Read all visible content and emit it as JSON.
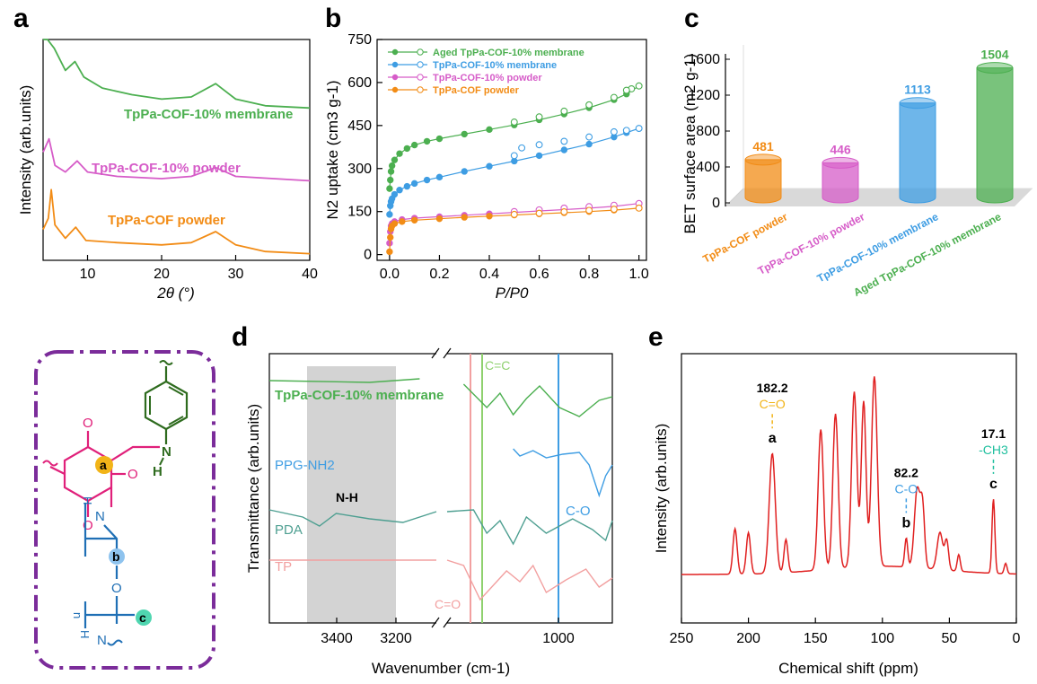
{
  "panels": {
    "a": "a",
    "b": "b",
    "c": "c",
    "d": "d",
    "e": "e"
  },
  "colors": {
    "green": "#4caf50",
    "pink": "#d65cc8",
    "orange": "#f28c16",
    "blue": "#3e9de3",
    "teal": "#4e9f91",
    "salmon": "#f2a0a0",
    "red": "#e02020",
    "yellow": "#f2b418",
    "magenta": "#e0207a",
    "darkgreen": "#2e6b1e",
    "structblue": "#1f6fb5",
    "purple": "#7b2c9a",
    "gray_band": "#d3d3d3"
  },
  "chart_data": [
    {
      "panel": "a",
      "type": "line",
      "title": "",
      "xlabel": "2θ (°)",
      "ylabel": "Intensity (arb.units)",
      "xlim": [
        4,
        40
      ],
      "xticks": [
        "10",
        "20",
        "30",
        "40"
      ],
      "series": [
        {
          "name": "TpPa-COF-10% membrane",
          "color": "#4caf50",
          "offset": 0.66,
          "points": [
            [
              4,
              1.0
            ],
            [
              4.6,
              0.5
            ],
            [
              5.5,
              0.3
            ],
            [
              7,
              0.2
            ],
            [
              8.3,
              0.24
            ],
            [
              9.5,
              0.17
            ],
            [
              12,
              0.12
            ],
            [
              16,
              0.09
            ],
            [
              20,
              0.07
            ],
            [
              24,
              0.08
            ],
            [
              27.3,
              0.14
            ],
            [
              30,
              0.07
            ],
            [
              34,
              0.04
            ],
            [
              40,
              0.03
            ]
          ]
        },
        {
          "name": "TpPa-COF-10% powder",
          "color": "#d65cc8",
          "offset": 0.35,
          "points": [
            [
              4,
              0.14
            ],
            [
              4.8,
              0.2
            ],
            [
              5.6,
              0.08
            ],
            [
              7,
              0.05
            ],
            [
              8.6,
              0.1
            ],
            [
              10,
              0.05
            ],
            [
              14,
              0.03
            ],
            [
              20,
              0.02
            ],
            [
              24,
              0.03
            ],
            [
              27.3,
              0.07
            ],
            [
              30,
              0.03
            ],
            [
              40,
              0.01
            ]
          ]
        },
        {
          "name": "TpPa-COF powder",
          "color": "#f28c16",
          "offset": 0.02,
          "points": [
            [
              4,
              0.12
            ],
            [
              4.7,
              0.17
            ],
            [
              5.1,
              0.3
            ],
            [
              5.6,
              0.14
            ],
            [
              7,
              0.08
            ],
            [
              8.4,
              0.13
            ],
            [
              9.8,
              0.07
            ],
            [
              14,
              0.06
            ],
            [
              20,
              0.05
            ],
            [
              24,
              0.06
            ],
            [
              27.3,
              0.11
            ],
            [
              30,
              0.05
            ],
            [
              34,
              0.02
            ],
            [
              40,
              0.01
            ]
          ]
        }
      ]
    },
    {
      "panel": "b",
      "type": "scatter",
      "title": "",
      "xlabel": "P/P0",
      "ylabel": "N2 uptake (cm3 g-1)",
      "xlim": [
        -0.05,
        1.03
      ],
      "ylim": [
        -20,
        750
      ],
      "xticks": [
        "0.0",
        "0.2",
        "0.4",
        "0.6",
        "0.8",
        "1.0"
      ],
      "yticks": [
        "0",
        "150",
        "300",
        "450",
        "600",
        "750"
      ],
      "series": [
        {
          "name": "Aged TpPa-COF-10% membrane",
          "color": "#4caf50",
          "adsorption": [
            [
              0.0,
              230
            ],
            [
              0.003,
              260
            ],
            [
              0.006,
              290
            ],
            [
              0.01,
              310
            ],
            [
              0.02,
              330
            ],
            [
              0.04,
              352
            ],
            [
              0.07,
              370
            ],
            [
              0.1,
              382
            ],
            [
              0.15,
              395
            ],
            [
              0.2,
              404
            ],
            [
              0.3,
              420
            ],
            [
              0.4,
              436
            ],
            [
              0.5,
              452
            ],
            [
              0.6,
              470
            ],
            [
              0.7,
              490
            ],
            [
              0.8,
              512
            ],
            [
              0.9,
              540
            ],
            [
              0.95,
              560
            ],
            [
              1.0,
              588
            ]
          ],
          "desorption": [
            [
              1.0,
              588
            ],
            [
              0.97,
              578
            ],
            [
              0.95,
              573
            ],
            [
              0.9,
              548
            ],
            [
              0.8,
              522
            ],
            [
              0.7,
              500
            ],
            [
              0.6,
              480
            ],
            [
              0.5,
              462
            ]
          ]
        },
        {
          "name": "TpPa-COF-10% membrane",
          "color": "#3e9de3",
          "adsorption": [
            [
              0.0,
              140
            ],
            [
              0.003,
              170
            ],
            [
              0.006,
              185
            ],
            [
              0.01,
              195
            ],
            [
              0.02,
              210
            ],
            [
              0.04,
              225
            ],
            [
              0.07,
              238
            ],
            [
              0.1,
              248
            ],
            [
              0.15,
              260
            ],
            [
              0.2,
              270
            ],
            [
              0.3,
              290
            ],
            [
              0.4,
              308
            ],
            [
              0.5,
              326
            ],
            [
              0.6,
              345
            ],
            [
              0.7,
              365
            ],
            [
              0.8,
              385
            ],
            [
              0.9,
              410
            ],
            [
              0.95,
              425
            ],
            [
              1.0,
              440
            ]
          ],
          "desorption": [
            [
              1.0,
              440
            ],
            [
              0.95,
              433
            ],
            [
              0.9,
              428
            ],
            [
              0.8,
              410
            ],
            [
              0.7,
              395
            ],
            [
              0.6,
              383
            ],
            [
              0.53,
              372
            ],
            [
              0.5,
              345
            ]
          ]
        },
        {
          "name": "TpPa-COF-10% powder",
          "color": "#d65cc8",
          "adsorption": [
            [
              0.0,
              40
            ],
            [
              0.003,
              80
            ],
            [
              0.006,
              100
            ],
            [
              0.01,
              108
            ],
            [
              0.02,
              115
            ],
            [
              0.05,
              122
            ],
            [
              0.1,
              127
            ],
            [
              0.2,
              132
            ],
            [
              0.3,
              137
            ],
            [
              0.4,
              142
            ],
            [
              0.5,
              147
            ],
            [
              0.6,
              152
            ],
            [
              0.7,
              157
            ],
            [
              0.8,
              162
            ],
            [
              0.9,
              168
            ],
            [
              1.0,
              178
            ]
          ],
          "desorption": [
            [
              1.0,
              178
            ],
            [
              0.9,
              172
            ],
            [
              0.8,
              167
            ],
            [
              0.7,
              162
            ],
            [
              0.6,
              156
            ],
            [
              0.5,
              150
            ]
          ]
        },
        {
          "name": "TpPa-COF powder",
          "color": "#f28c16",
          "adsorption": [
            [
              0.0,
              10
            ],
            [
              0.003,
              60
            ],
            [
              0.006,
              90
            ],
            [
              0.01,
              100
            ],
            [
              0.02,
              108
            ],
            [
              0.05,
              115
            ],
            [
              0.1,
              120
            ],
            [
              0.2,
              125
            ],
            [
              0.3,
              130
            ],
            [
              0.4,
              134
            ],
            [
              0.5,
              138
            ],
            [
              0.6,
              142
            ],
            [
              0.7,
              146
            ],
            [
              0.8,
              150
            ],
            [
              0.9,
              155
            ],
            [
              1.0,
              162
            ]
          ],
          "desorption": [
            [
              1.0,
              162
            ],
            [
              0.9,
              158
            ],
            [
              0.8,
              154
            ],
            [
              0.7,
              149
            ],
            [
              0.6,
              144
            ],
            [
              0.5,
              140
            ]
          ]
        }
      ]
    },
    {
      "panel": "c",
      "type": "bar",
      "title": "",
      "ylabel": "BET surface area (m2 g-1)",
      "ylim": [
        0,
        1700
      ],
      "yticks": [
        "0",
        "400",
        "800",
        "1200",
        "1600"
      ],
      "categories": [
        "TpPa-COF powder",
        "TpPa-COF-10% powder",
        "TpPa-COF-10% membrane",
        "Aged TpPa-COF-10% membrane"
      ],
      "values": [
        481,
        446,
        1113,
        1504
      ],
      "value_labels": [
        "481",
        "446",
        "1113",
        "1504"
      ],
      "colors": [
        "#f28c16",
        "#d65cc8",
        "#3e9de3",
        "#4caf50"
      ]
    },
    {
      "panel": "d",
      "type": "line",
      "title": "",
      "xlabel": "Wavenumber (cm-1)",
      "ylabel": "Transmittance (arb.units)",
      "xticks": [
        "3400",
        "3200",
        "1000"
      ],
      "band": [
        3420,
        3200
      ],
      "series": [
        {
          "name": "TpPa-COF-10% membrane",
          "color": "#4caf50"
        },
        {
          "name": "PPG-NH2",
          "color": "#3e9de3"
        },
        {
          "name": "PDA",
          "color": "#4e9f91"
        },
        {
          "name": "TP",
          "color": "#f2a0a0"
        }
      ],
      "markers": [
        {
          "label": "C=C",
          "color": "#8fd16f"
        },
        {
          "label": "C-O",
          "color": "#3e9de3"
        },
        {
          "label": "C=O",
          "color": "#f2a0a0"
        },
        {
          "label": "N-H",
          "color": "#000000"
        }
      ]
    },
    {
      "panel": "e",
      "type": "line",
      "title": "",
      "xlabel": "Chemical shift (ppm)",
      "ylabel": "Intensity (arb.units)",
      "xlim": [
        250,
        0
      ],
      "xticks": [
        "250",
        "200",
        "150",
        "100",
        "50",
        "0"
      ],
      "series": [
        {
          "name": "",
          "color": "#e02020",
          "peaks": [
            [
              210,
              0.22,
              2.2
            ],
            [
              200,
              0.2,
              2.2
            ],
            [
              182.2,
              0.58,
              3.2
            ],
            [
              172,
              0.16,
              2.0
            ],
            [
              146,
              0.68,
              2.8
            ],
            [
              135,
              0.75,
              2.8
            ],
            [
              121,
              0.85,
              2.8
            ],
            [
              114,
              0.8,
              2.5
            ],
            [
              106,
              0.92,
              3.0
            ],
            [
              82.2,
              0.14,
              1.6
            ],
            [
              74,
              0.38,
              3.0
            ],
            [
              70,
              0.28,
              2.2
            ],
            [
              57,
              0.18,
              3.0
            ],
            [
              52,
              0.14,
              2.0
            ],
            [
              43,
              0.08,
              1.6
            ],
            [
              17.1,
              0.36,
              1.5
            ],
            [
              8,
              0.05,
              1.5
            ]
          ]
        }
      ],
      "annotations": [
        {
          "value": "182.2",
          "group": "C=O",
          "letter": "a",
          "color": "#f2b418"
        },
        {
          "value": "82.2",
          "group": "C-O",
          "letter": "b",
          "color": "#3e9de3"
        },
        {
          "value": "17.1",
          "group": "-CH3",
          "letter": "c",
          "color": "#1fbf9e"
        }
      ]
    }
  ],
  "structure": {
    "labels": [
      "a",
      "b",
      "c",
      "O",
      "H",
      "N",
      "n"
    ]
  }
}
